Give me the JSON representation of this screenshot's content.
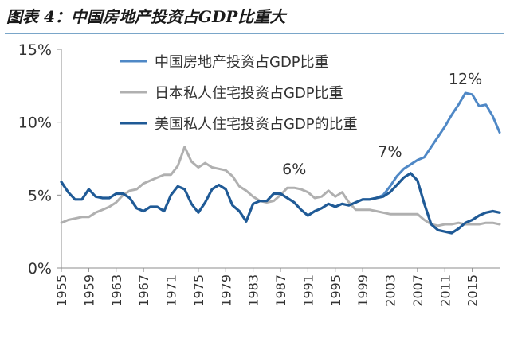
{
  "figure": {
    "title": "图表 4：中国房地产投资占GDP比重大"
  },
  "chart_data": {
    "type": "line",
    "title": "图表 4：中国房地产投资占GDP比重大",
    "xlabel": "",
    "ylabel": "",
    "xlim": [
      1955,
      2019
    ],
    "ylim": [
      0,
      15
    ],
    "y_ticks": [
      0,
      5,
      10,
      15
    ],
    "y_tick_labels": [
      "0%",
      "5%",
      "10%",
      "15%"
    ],
    "x_ticks": [
      1955,
      1959,
      1963,
      1967,
      1971,
      1975,
      1979,
      1983,
      1987,
      1991,
      1995,
      1999,
      2003,
      2007,
      2011,
      2015
    ],
    "x_tick_labels": [
      "1955",
      "1959",
      "1963",
      "1967",
      "1971",
      "1975",
      "1979",
      "1983",
      "1987",
      "1991",
      "1995",
      "1999",
      "2003",
      "2007",
      "2011",
      "2015"
    ],
    "grid": false,
    "legend_position": "top-right",
    "series": [
      {
        "name": "中国房地产投资占GDP比重",
        "color": "#4f88c6",
        "x": [
          1999,
          2000,
          2001,
          2002,
          2003,
          2004,
          2005,
          2006,
          2007,
          2008,
          2009,
          2010,
          2011,
          2012,
          2013,
          2014,
          2015,
          2016,
          2017,
          2018,
          2019
        ],
        "values": [
          4.7,
          4.7,
          4.8,
          5.0,
          5.6,
          6.3,
          6.8,
          7.1,
          7.4,
          7.6,
          8.3,
          9.0,
          9.7,
          10.5,
          11.2,
          12.0,
          11.9,
          11.1,
          11.2,
          10.4,
          9.3
        ]
      },
      {
        "name": "日本私人住宅投资占GDP比重",
        "color": "#b0b0b0",
        "x": [
          1955,
          1956,
          1957,
          1958,
          1959,
          1960,
          1961,
          1962,
          1963,
          1964,
          1965,
          1966,
          1967,
          1968,
          1969,
          1970,
          1971,
          1972,
          1973,
          1974,
          1975,
          1976,
          1977,
          1978,
          1979,
          1980,
          1981,
          1982,
          1983,
          1984,
          1985,
          1986,
          1987,
          1988,
          1989,
          1990,
          1991,
          1992,
          1993,
          1994,
          1995,
          1996,
          1997,
          1998,
          1999,
          2000,
          2001,
          2002,
          2003,
          2004,
          2005,
          2006,
          2007,
          2008,
          2009,
          2010,
          2011,
          2012,
          2013,
          2014,
          2015,
          2016,
          2017,
          2018,
          2019
        ],
        "values": [
          3.1,
          3.3,
          3.4,
          3.5,
          3.5,
          3.8,
          4.0,
          4.2,
          4.5,
          5.0,
          5.3,
          5.4,
          5.8,
          6.0,
          6.2,
          6.4,
          6.4,
          7.0,
          8.3,
          7.3,
          6.9,
          7.2,
          6.9,
          6.8,
          6.7,
          6.3,
          5.6,
          5.3,
          4.9,
          4.6,
          4.5,
          4.6,
          5.0,
          5.5,
          5.5,
          5.4,
          5.2,
          4.8,
          4.9,
          5.3,
          4.9,
          5.2,
          4.5,
          4.0,
          4.0,
          4.0,
          3.9,
          3.8,
          3.7,
          3.7,
          3.7,
          3.7,
          3.7,
          3.3,
          3.0,
          2.9,
          3.0,
          3.0,
          3.1,
          3.0,
          3.0,
          3.0,
          3.1,
          3.1,
          3.0
        ]
      },
      {
        "name": "美国私人住宅投资占GDP的比重",
        "color": "#1f5a96",
        "x": [
          1955,
          1956,
          1957,
          1958,
          1959,
          1960,
          1961,
          1962,
          1963,
          1964,
          1965,
          1966,
          1967,
          1968,
          1969,
          1970,
          1971,
          1972,
          1973,
          1974,
          1975,
          1976,
          1977,
          1978,
          1979,
          1980,
          1981,
          1982,
          1983,
          1984,
          1985,
          1986,
          1987,
          1988,
          1989,
          1990,
          1991,
          1992,
          1993,
          1994,
          1995,
          1996,
          1997,
          1998,
          1999,
          2000,
          2001,
          2002,
          2003,
          2004,
          2005,
          2006,
          2007,
          2008,
          2009,
          2010,
          2011,
          2012,
          2013,
          2014,
          2015,
          2016,
          2017,
          2018,
          2019
        ],
        "values": [
          5.9,
          5.2,
          4.7,
          4.7,
          5.4,
          4.9,
          4.8,
          4.8,
          5.1,
          5.1,
          4.8,
          4.1,
          3.9,
          4.2,
          4.2,
          3.9,
          5.0,
          5.6,
          5.4,
          4.4,
          3.8,
          4.5,
          5.4,
          5.7,
          5.4,
          4.3,
          3.9,
          3.2,
          4.4,
          4.6,
          4.6,
          5.1,
          5.1,
          4.8,
          4.5,
          4.0,
          3.6,
          3.9,
          4.1,
          4.4,
          4.2,
          4.4,
          4.3,
          4.5,
          4.7,
          4.7,
          4.8,
          4.9,
          5.2,
          5.7,
          6.2,
          6.5,
          6.0,
          4.4,
          3.0,
          2.6,
          2.5,
          2.4,
          2.7,
          3.1,
          3.3,
          3.6,
          3.8,
          3.9,
          3.8
        ]
      }
    ],
    "annotations": [
      {
        "text": "6%",
        "x": 1989,
        "y": 6.1
      },
      {
        "text": "7%",
        "x": 2003,
        "y": 7.3
      },
      {
        "text": "12%",
        "x": 2014,
        "y": 12.3
      }
    ]
  }
}
